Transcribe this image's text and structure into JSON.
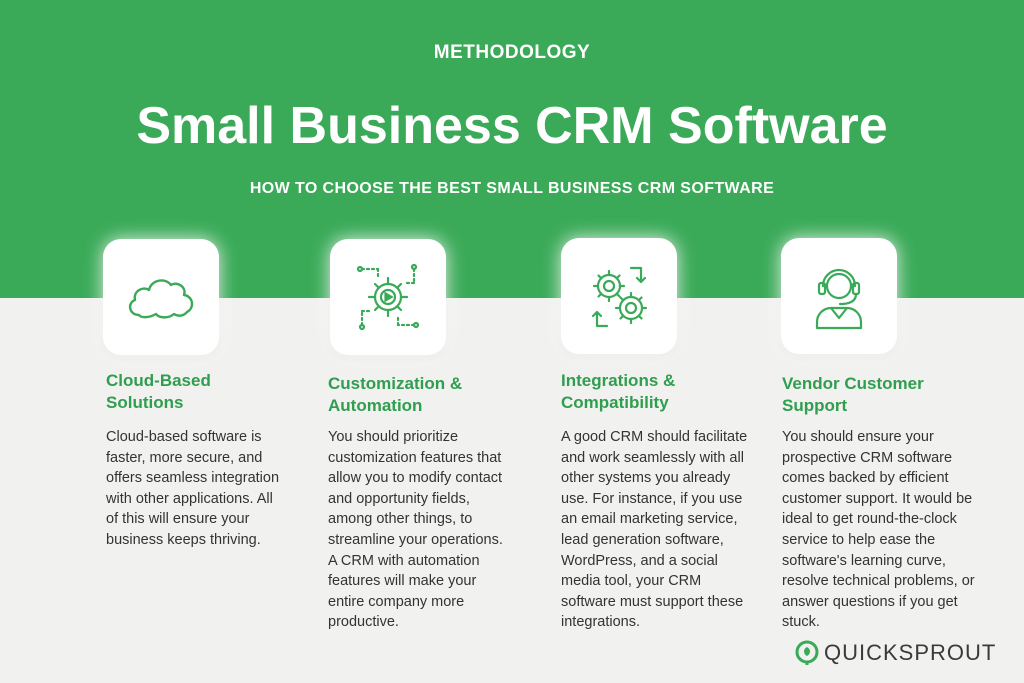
{
  "header": {
    "eyebrow": "METHODOLOGY",
    "title": "Small Business CRM Software",
    "subtitle": "HOW TO CHOOSE THE BEST SMALL BUSINESS CRM SOFTWARE"
  },
  "columns": [
    {
      "icon": "cloud-icon",
      "title_line1": "Cloud-Based",
      "title_line2": "Solutions",
      "text": "Cloud-based software is faster, more secure, and offers seamless integration with other applications. All of this will ensure your business keeps thriving."
    },
    {
      "icon": "automation-gear-icon",
      "title_line1": "Customization &",
      "title_line2": "Automation",
      "text": "You should prioritize customization features that allow you to modify contact and opportunity fields, among other things, to streamline your operations. A CRM with automation features will make your entire company more productive."
    },
    {
      "icon": "integration-gears-icon",
      "title_line1": "Integrations &",
      "title_line2": "Compatibility",
      "text": "A good CRM should facilitate and work seamlessly with all other systems you already use. For instance, if you use an email marketing service, lead generation software, WordPress, and a social media tool, your CRM software must support these integrations."
    },
    {
      "icon": "headset-support-icon",
      "title_line1": "Vendor Customer",
      "title_line2": "Support",
      "text": "You should ensure your prospective CRM software comes backed by efficient customer support. It would be ideal to get round-the-clock service to help ease the software's learning curve, resolve technical problems, or answer questions if you get stuck."
    }
  ],
  "brand": {
    "name": "QUICKSPROUT"
  },
  "colors": {
    "primary_green": "#3aaa58",
    "title_green": "#2f9e4f"
  }
}
